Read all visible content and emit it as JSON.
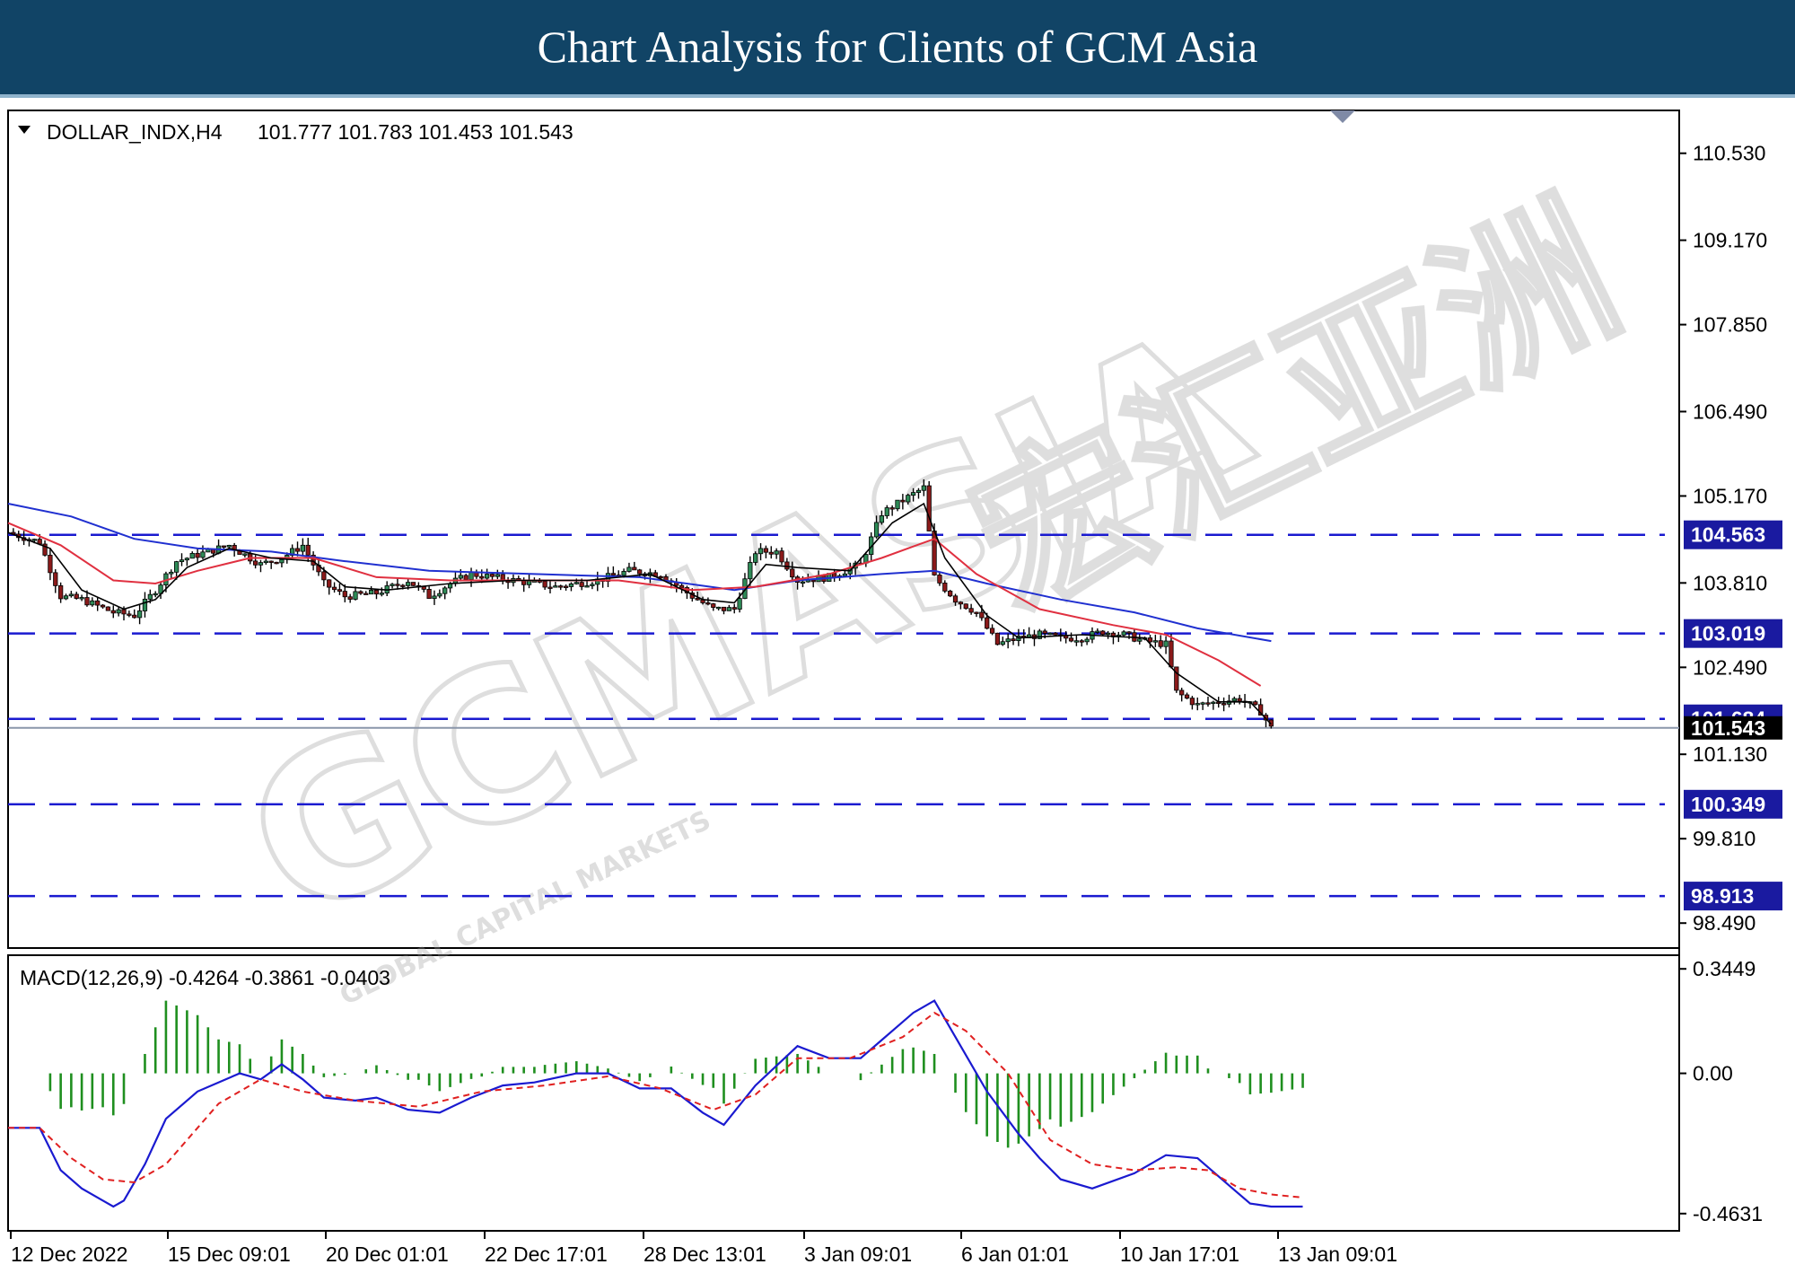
{
  "page_title": "Chart Analysis for Clients of GCM Asia",
  "watermark": {
    "main": "GCMASIA",
    "chinese": "宏汇亚洲",
    "small": "GLOBAL CAPITAL MARKETS"
  },
  "colors": {
    "banner": "#114466",
    "bull_candle": "#2e8b57",
    "bear_candle": "#8b1a1a",
    "ma_fast": "#000000",
    "ma_mid": "#e03040",
    "ma_slow": "#2030d0",
    "level_line": "#1a1ad0",
    "histogram": "#1f8f1f",
    "macd_line": "#1a1ad0",
    "signal_line": "#e02020"
  },
  "chart_data": [
    {
      "type": "candlestick",
      "header": {
        "symbol": "DOLLAR_INDX,H4",
        "ohlc": "101.777 101.783 101.453 101.543"
      },
      "ylim": [
        98.1,
        111.2
      ],
      "y_ticks": [
        "110.530",
        "109.170",
        "107.850",
        "106.490",
        "105.170",
        "103.810",
        "102.490",
        "101.130",
        "99.810",
        "98.490"
      ],
      "x_ticks": [
        "12 Dec 2022",
        "15 Dec 09:01",
        "20 Dec 01:01",
        "22 Dec 17:01",
        "28 Dec 13:01",
        "3 Jan 09:01",
        "6 Jan 01:01",
        "10 Jan 17:01",
        "13 Jan 09:01"
      ],
      "levels": [
        "104.563",
        "103.019",
        "101.684",
        "100.349",
        "98.913"
      ],
      "current_price": "101.543",
      "close_path": [
        [
          0,
          104.6
        ],
        [
          6,
          104.45
        ],
        [
          10,
          103.6
        ],
        [
          14,
          103.55
        ],
        [
          20,
          103.35
        ],
        [
          24,
          103.3
        ],
        [
          28,
          103.7
        ],
        [
          32,
          104.15
        ],
        [
          36,
          104.25
        ],
        [
          42,
          104.4
        ],
        [
          48,
          104.1
        ],
        [
          52,
          104.2
        ],
        [
          56,
          104.4
        ],
        [
          60,
          103.8
        ],
        [
          64,
          103.6
        ],
        [
          70,
          103.65
        ],
        [
          76,
          103.85
        ],
        [
          80,
          103.6
        ],
        [
          84,
          103.8
        ],
        [
          88,
          103.95
        ],
        [
          96,
          103.85
        ],
        [
          104,
          103.75
        ],
        [
          112,
          103.85
        ],
        [
          118,
          104.0
        ],
        [
          124,
          103.95
        ],
        [
          130,
          103.6
        ],
        [
          134,
          103.4
        ],
        [
          138,
          103.4
        ],
        [
          142,
          104.3
        ],
        [
          146,
          104.3
        ],
        [
          150,
          103.85
        ],
        [
          156,
          103.9
        ],
        [
          162,
          104.1
        ],
        [
          166,
          104.9
        ],
        [
          170,
          105.1
        ],
        [
          174,
          105.3
        ],
        [
          176,
          103.9
        ],
        [
          180,
          103.55
        ],
        [
          184,
          103.35
        ],
        [
          188,
          102.85
        ],
        [
          192,
          102.95
        ],
        [
          196,
          103.0
        ],
        [
          200,
          102.95
        ],
        [
          204,
          102.95
        ],
        [
          208,
          103.05
        ],
        [
          212,
          103.0
        ],
        [
          216,
          102.9
        ],
        [
          220,
          102.85
        ],
        [
          222,
          102.1
        ],
        [
          226,
          101.9
        ],
        [
          230,
          101.95
        ],
        [
          234,
          102.0
        ],
        [
          238,
          101.8
        ],
        [
          240,
          101.54
        ]
      ],
      "ma_fast": [
        [
          0,
          104.6
        ],
        [
          8,
          104.35
        ],
        [
          14,
          103.7
        ],
        [
          22,
          103.4
        ],
        [
          28,
          103.55
        ],
        [
          34,
          104.05
        ],
        [
          42,
          104.35
        ],
        [
          50,
          104.2
        ],
        [
          58,
          104.15
        ],
        [
          64,
          103.75
        ],
        [
          72,
          103.7
        ],
        [
          84,
          103.8
        ],
        [
          96,
          103.85
        ],
        [
          110,
          103.85
        ],
        [
          122,
          103.95
        ],
        [
          132,
          103.55
        ],
        [
          138,
          103.5
        ],
        [
          144,
          104.1
        ],
        [
          150,
          104.05
        ],
        [
          160,
          104.0
        ],
        [
          168,
          104.75
        ],
        [
          174,
          105.05
        ],
        [
          178,
          104.2
        ],
        [
          186,
          103.3
        ],
        [
          192,
          102.95
        ],
        [
          204,
          103.0
        ],
        [
          216,
          102.95
        ],
        [
          222,
          102.4
        ],
        [
          230,
          101.95
        ],
        [
          236,
          101.95
        ],
        [
          240,
          101.6
        ]
      ],
      "ma_mid": [
        [
          0,
          104.75
        ],
        [
          10,
          104.4
        ],
        [
          20,
          103.85
        ],
        [
          28,
          103.8
        ],
        [
          36,
          104.0
        ],
        [
          46,
          104.2
        ],
        [
          58,
          104.2
        ],
        [
          70,
          103.9
        ],
        [
          84,
          103.85
        ],
        [
          100,
          103.85
        ],
        [
          116,
          103.85
        ],
        [
          130,
          103.7
        ],
        [
          142,
          103.75
        ],
        [
          156,
          103.95
        ],
        [
          166,
          104.2
        ],
        [
          176,
          104.5
        ],
        [
          184,
          103.95
        ],
        [
          196,
          103.4
        ],
        [
          210,
          103.15
        ],
        [
          220,
          103.0
        ],
        [
          230,
          102.6
        ],
        [
          238,
          102.2
        ]
      ],
      "ma_slow": [
        [
          0,
          105.05
        ],
        [
          12,
          104.85
        ],
        [
          24,
          104.5
        ],
        [
          36,
          104.35
        ],
        [
          50,
          104.3
        ],
        [
          64,
          104.15
        ],
        [
          80,
          104.0
        ],
        [
          100,
          103.95
        ],
        [
          120,
          103.9
        ],
        [
          138,
          103.7
        ],
        [
          150,
          103.85
        ],
        [
          166,
          103.95
        ],
        [
          176,
          104.0
        ],
        [
          186,
          103.8
        ],
        [
          200,
          103.55
        ],
        [
          214,
          103.35
        ],
        [
          226,
          103.1
        ],
        [
          240,
          102.9
        ]
      ]
    },
    {
      "type": "macd",
      "header": "MACD(12,26,9) -0.4264 -0.3861 -0.0403",
      "ylim": [
        -0.52,
        0.39
      ],
      "y_ticks": [
        "0.3449",
        "0.00",
        "-0.4631"
      ],
      "main": [
        [
          0,
          -0.18
        ],
        [
          6,
          -0.18
        ],
        [
          10,
          -0.32
        ],
        [
          14,
          -0.38
        ],
        [
          18,
          -0.42
        ],
        [
          20,
          -0.44
        ],
        [
          22,
          -0.42
        ],
        [
          26,
          -0.3
        ],
        [
          30,
          -0.15
        ],
        [
          36,
          -0.06
        ],
        [
          44,
          0.0
        ],
        [
          48,
          -0.02
        ],
        [
          52,
          0.03
        ],
        [
          56,
          -0.02
        ],
        [
          60,
          -0.08
        ],
        [
          66,
          -0.09
        ],
        [
          70,
          -0.08
        ],
        [
          76,
          -0.12
        ],
        [
          82,
          -0.13
        ],
        [
          88,
          -0.08
        ],
        [
          94,
          -0.04
        ],
        [
          100,
          -0.03
        ],
        [
          108,
          0.0
        ],
        [
          114,
          0.0
        ],
        [
          120,
          -0.05
        ],
        [
          126,
          -0.05
        ],
        [
          132,
          -0.13
        ],
        [
          136,
          -0.17
        ],
        [
          142,
          -0.04
        ],
        [
          150,
          0.09
        ],
        [
          156,
          0.05
        ],
        [
          162,
          0.05
        ],
        [
          166,
          0.11
        ],
        [
          172,
          0.2
        ],
        [
          176,
          0.24
        ],
        [
          180,
          0.12
        ],
        [
          186,
          -0.06
        ],
        [
          192,
          -0.2
        ],
        [
          196,
          -0.28
        ],
        [
          200,
          -0.35
        ],
        [
          206,
          -0.38
        ],
        [
          214,
          -0.33
        ],
        [
          220,
          -0.27
        ],
        [
          226,
          -0.28
        ],
        [
          232,
          -0.37
        ],
        [
          236,
          -0.43
        ],
        [
          240,
          -0.44
        ],
        [
          246,
          -0.44
        ]
      ],
      "signal": [
        [
          0,
          -0.18
        ],
        [
          6,
          -0.18
        ],
        [
          12,
          -0.28
        ],
        [
          18,
          -0.35
        ],
        [
          24,
          -0.36
        ],
        [
          30,
          -0.3
        ],
        [
          40,
          -0.1
        ],
        [
          48,
          -0.02
        ],
        [
          56,
          -0.06
        ],
        [
          66,
          -0.09
        ],
        [
          78,
          -0.11
        ],
        [
          90,
          -0.06
        ],
        [
          102,
          -0.04
        ],
        [
          114,
          -0.01
        ],
        [
          124,
          -0.05
        ],
        [
          134,
          -0.12
        ],
        [
          142,
          -0.07
        ],
        [
          150,
          0.05
        ],
        [
          160,
          0.05
        ],
        [
          170,
          0.12
        ],
        [
          176,
          0.2
        ],
        [
          182,
          0.14
        ],
        [
          190,
          0.0
        ],
        [
          198,
          -0.22
        ],
        [
          206,
          -0.3
        ],
        [
          214,
          -0.32
        ],
        [
          222,
          -0.31
        ],
        [
          228,
          -0.32
        ],
        [
          234,
          -0.38
        ],
        [
          240,
          -0.4
        ],
        [
          246,
          -0.41
        ]
      ]
    }
  ]
}
